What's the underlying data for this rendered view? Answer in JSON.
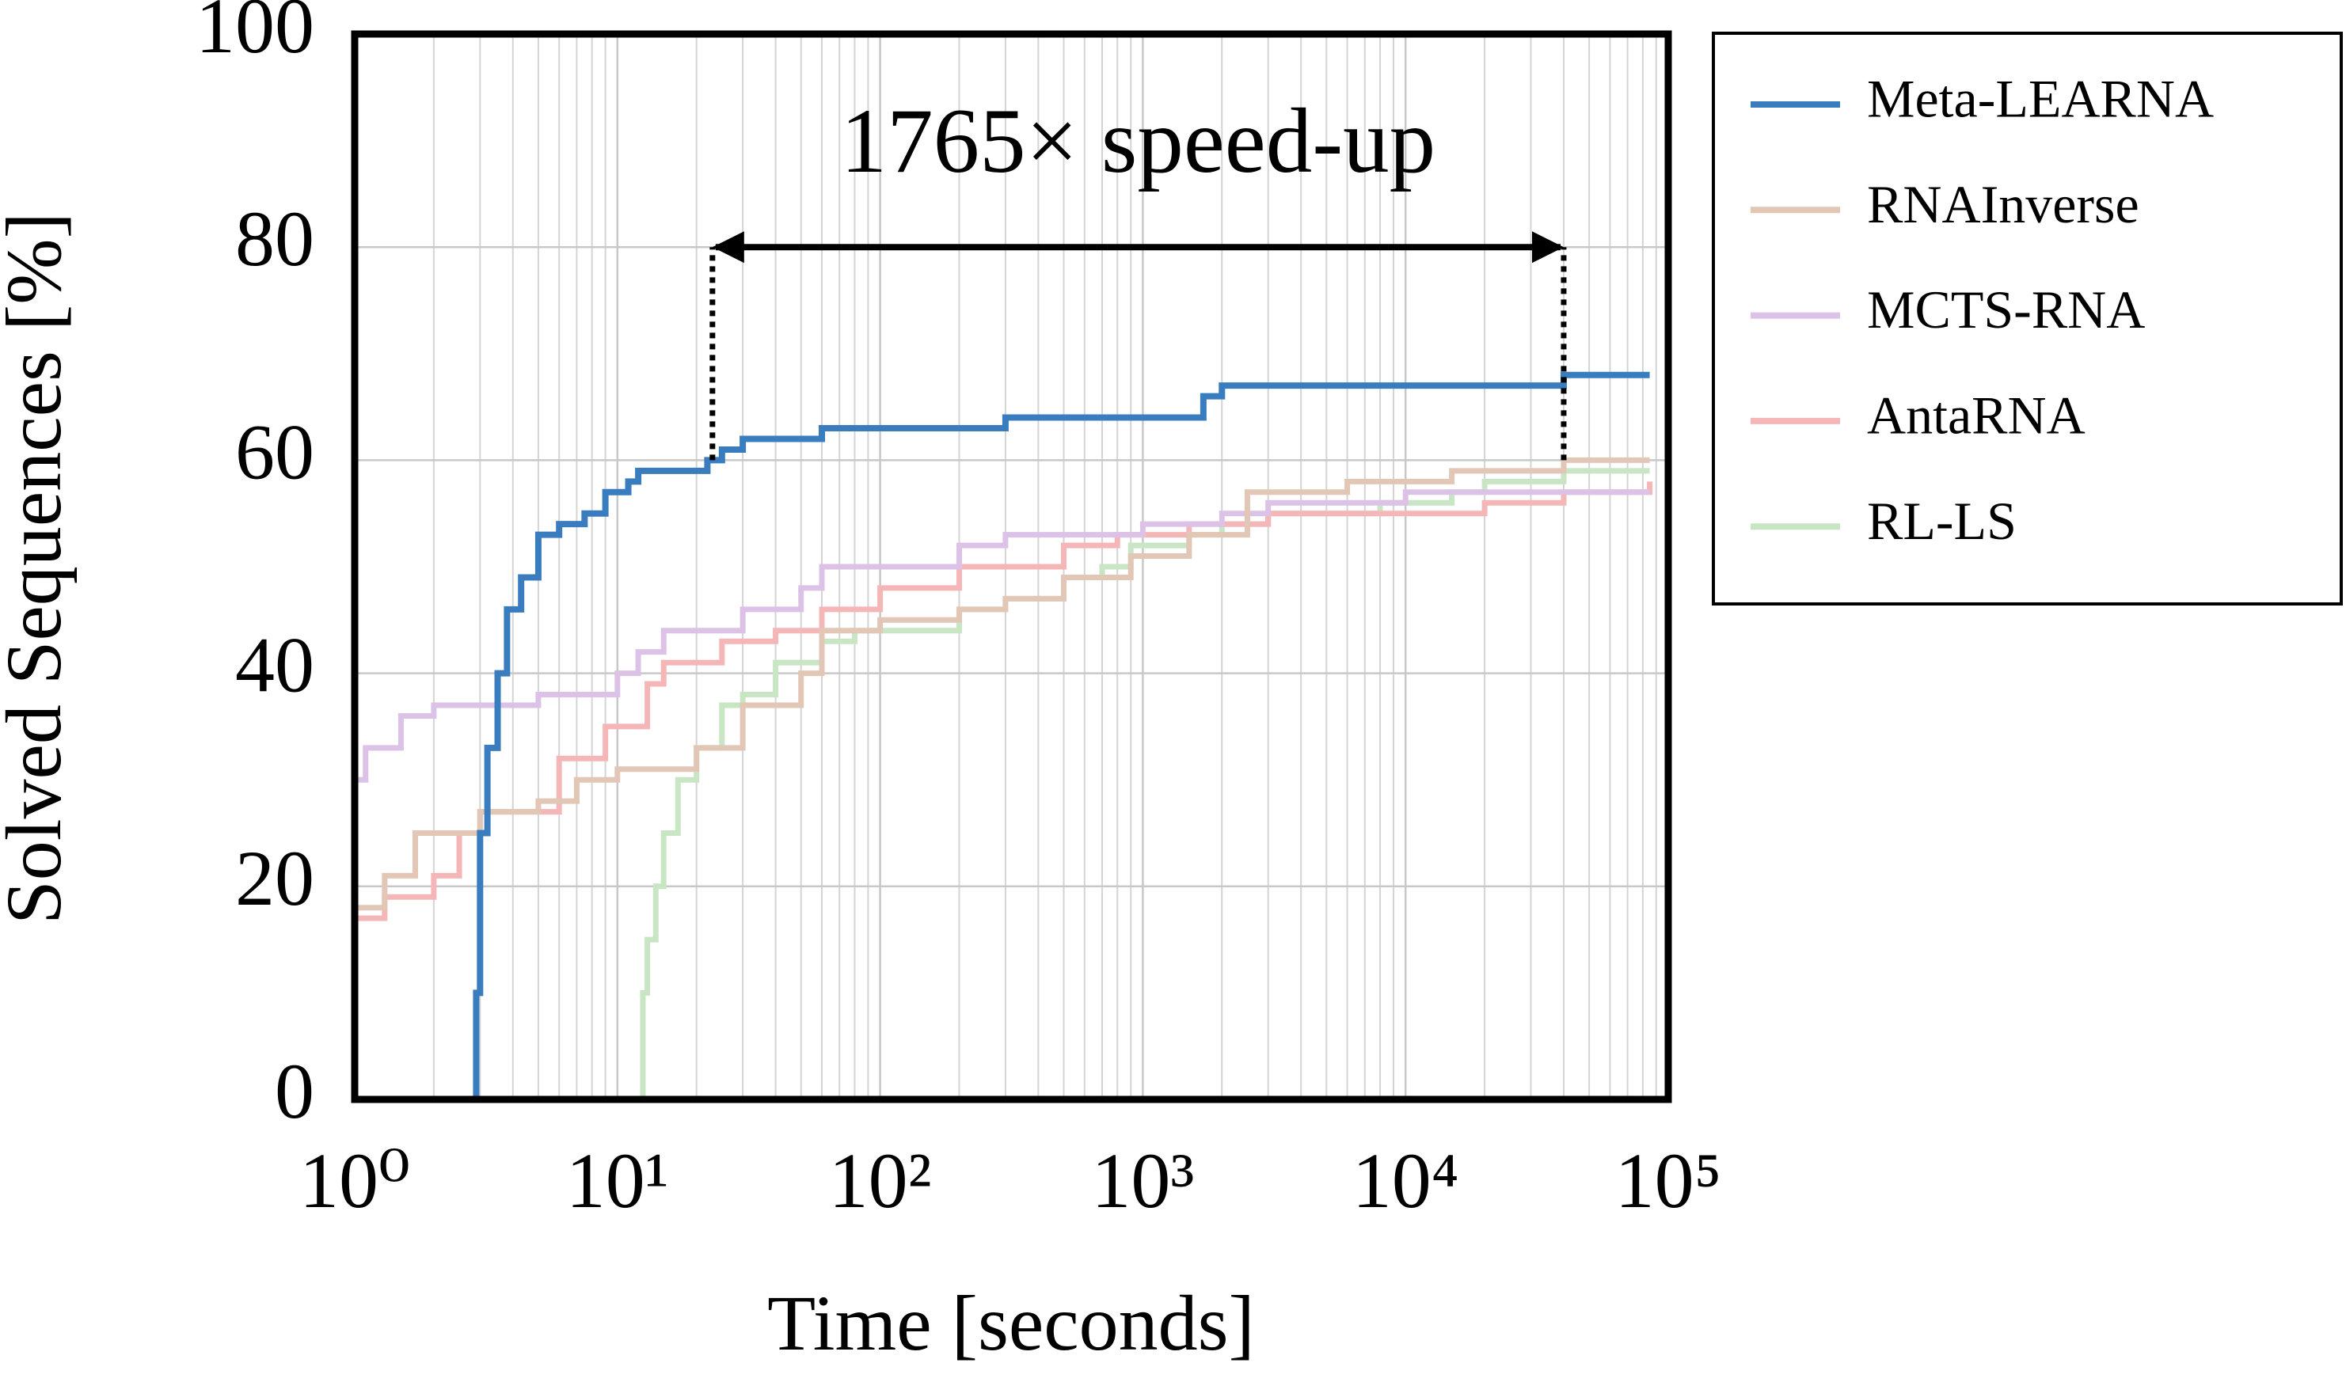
{
  "chart_data": {
    "type": "line",
    "step": true,
    "annotation": {
      "text": "1765× speed-up",
      "arrow_x": [
        23,
        40000
      ],
      "arrow_y": 80,
      "dotted_from": 60
    },
    "xlabel": "Time [seconds]",
    "ylabel": "Solved Sequences [%]",
    "xscale": "log",
    "xlim": [
      1,
      100000
    ],
    "xticks": [
      {
        "value": 1,
        "label": "10⁰"
      },
      {
        "value": 10,
        "label": "10¹"
      },
      {
        "value": 100,
        "label": "10²"
      },
      {
        "value": 1000,
        "label": "10³"
      },
      {
        "value": 10000,
        "label": "10⁴"
      },
      {
        "value": 100000,
        "label": "10⁵"
      }
    ],
    "ylim": [
      0,
      100
    ],
    "yticks": [
      0,
      20,
      40,
      60,
      80,
      100
    ],
    "grid": true,
    "legend": "outside-right",
    "series": [
      {
        "name": "Meta-LEARNA",
        "color": "#3a7dbf",
        "x": [
          2.7,
          2.9,
          3.0,
          3.2,
          3.5,
          3.8,
          4.3,
          5.0,
          6.0,
          7.5,
          9.0,
          11.0,
          12.0,
          22.0,
          25.0,
          30.0,
          60.0,
          300.0,
          1700.0,
          2000.0,
          40000.0,
          85000.0
        ],
        "values": [
          0,
          10,
          25,
          33,
          40,
          46,
          49,
          53,
          54,
          55,
          57,
          58,
          59,
          60,
          61,
          62,
          63,
          64,
          66,
          67,
          68,
          68
        ]
      },
      {
        "name": "RNAInverse",
        "color": "#e2c6b6",
        "x": [
          1,
          1.3,
          1.7,
          3,
          5,
          7,
          10,
          20,
          30,
          50,
          60,
          100,
          200,
          300,
          500,
          900,
          1500,
          2500,
          6000,
          15000,
          40000,
          85000
        ],
        "values": [
          18,
          21,
          25,
          27,
          28,
          30,
          31,
          33,
          37,
          40,
          44,
          45,
          46,
          47,
          49,
          51,
          53,
          57,
          58,
          59,
          60,
          60
        ]
      },
      {
        "name": "MCTS-RNA",
        "color": "#dcc2e6",
        "x": [
          1,
          1.1,
          1.5,
          2,
          5,
          10,
          12,
          15,
          30,
          50,
          60,
          200,
          300,
          1000,
          2000,
          3000,
          10000,
          85000
        ],
        "values": [
          30,
          33,
          36,
          37,
          38,
          40,
          42,
          44,
          46,
          48,
          50,
          52,
          53,
          54,
          55,
          56,
          57,
          57
        ]
      },
      {
        "name": "AntaRNA",
        "color": "#f4b6b6",
        "x": [
          1,
          1.3,
          2,
          2.5,
          3,
          6,
          9,
          13,
          15,
          25,
          40,
          60,
          100,
          200,
          500,
          800,
          1500,
          3000,
          6000,
          20000,
          40000,
          85000
        ],
        "values": [
          17,
          19,
          21,
          25,
          27,
          32,
          35,
          39,
          41,
          43,
          44,
          46,
          48,
          50,
          52,
          53,
          54,
          55,
          55,
          56,
          57,
          58
        ]
      },
      {
        "name": "RL-LS",
        "color": "#c8e6c4",
        "x": [
          1,
          12,
          12.5,
          13,
          14,
          15,
          17,
          20,
          25,
          30,
          40,
          60,
          80,
          200,
          300,
          500,
          700,
          900,
          1500,
          2000,
          3000,
          8000,
          15000,
          20000,
          40000,
          85000
        ],
        "values": [
          0,
          0,
          10,
          15,
          20,
          25,
          30,
          33,
          37,
          38,
          41,
          43,
          44,
          46,
          47,
          49,
          50,
          52,
          53,
          54,
          55,
          56,
          57,
          58,
          59,
          59
        ]
      }
    ]
  }
}
